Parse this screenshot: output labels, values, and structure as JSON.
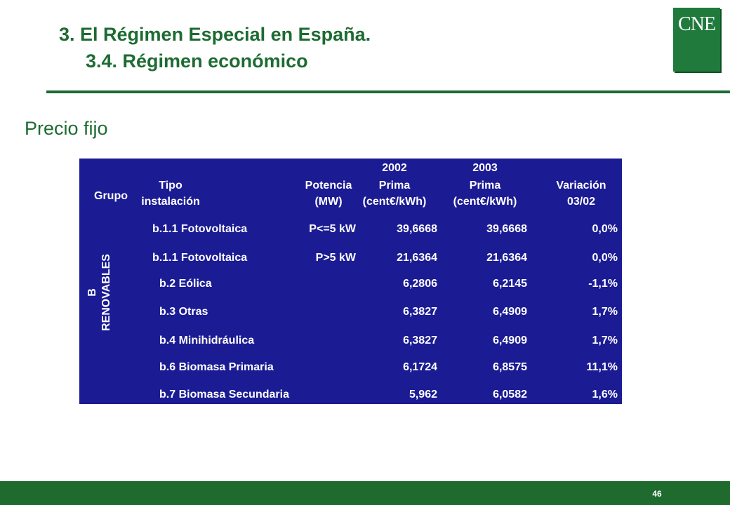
{
  "header": {
    "title": "3. El Régimen Especial en España.",
    "subtitle": "3.4. Régimen económico",
    "logo_text": "CNE"
  },
  "section_title": "Precio fijo",
  "table": {
    "columns": {
      "grupo": "Grupo",
      "tipo_line1": "Tipo",
      "tipo_line2": "instalación",
      "potencia_line1": "Potencia",
      "potencia_line2": "(MW)",
      "y2002_year": "2002",
      "y2002_line1": "Prima",
      "y2002_line2": "(cent€/kWh)",
      "y2003_year": "2003",
      "y2003_line1": "Prima",
      "y2003_line2": "(cent€/kWh)",
      "variacion_line1": "Variación",
      "variacion_line2": "03/02"
    },
    "group_label_line1": "B",
    "group_label_line2": "RENOVABLES",
    "rows": [
      {
        "tipo": "b.1.1 Fotovoltaica",
        "potencia": "P<=5 kW",
        "prima_2002": "39,6668",
        "prima_2003": "39,6668",
        "variacion": "0,0%"
      },
      {
        "tipo": "b.1.1 Fotovoltaica",
        "potencia": "P>5 kW",
        "prima_2002": "21,6364",
        "prima_2003": "21,6364",
        "variacion": "0,0%"
      },
      {
        "tipo": "b.2 Eólica",
        "potencia": "",
        "prima_2002": "6,2806",
        "prima_2003": "6,2145",
        "variacion": "-1,1%"
      },
      {
        "tipo": "b.3 Otras",
        "potencia": "",
        "prima_2002": "6,3827",
        "prima_2003": "6,4909",
        "variacion": "1,7%"
      },
      {
        "tipo": "b.4 Minihidráulica",
        "potencia": "",
        "prima_2002": "6,3827",
        "prima_2003": "6,4909",
        "variacion": "1,7%"
      },
      {
        "tipo": "b.6 Biomasa Primaria",
        "potencia": "",
        "prima_2002": "6,1724",
        "prima_2003": "6,8575",
        "variacion": "11,1%"
      },
      {
        "tipo": "b.7 Biomasa Secundaria",
        "potencia": "",
        "prima_2002": "5,962",
        "prima_2003": "6,0582",
        "variacion": "1,6%"
      }
    ]
  },
  "footer": {
    "page_number": "46"
  },
  "colors": {
    "title_green": "#1d6b32",
    "table_blue": "#1b1b94",
    "footer_green": "#1f6b2e",
    "logo_green": "#1f7a3c"
  }
}
